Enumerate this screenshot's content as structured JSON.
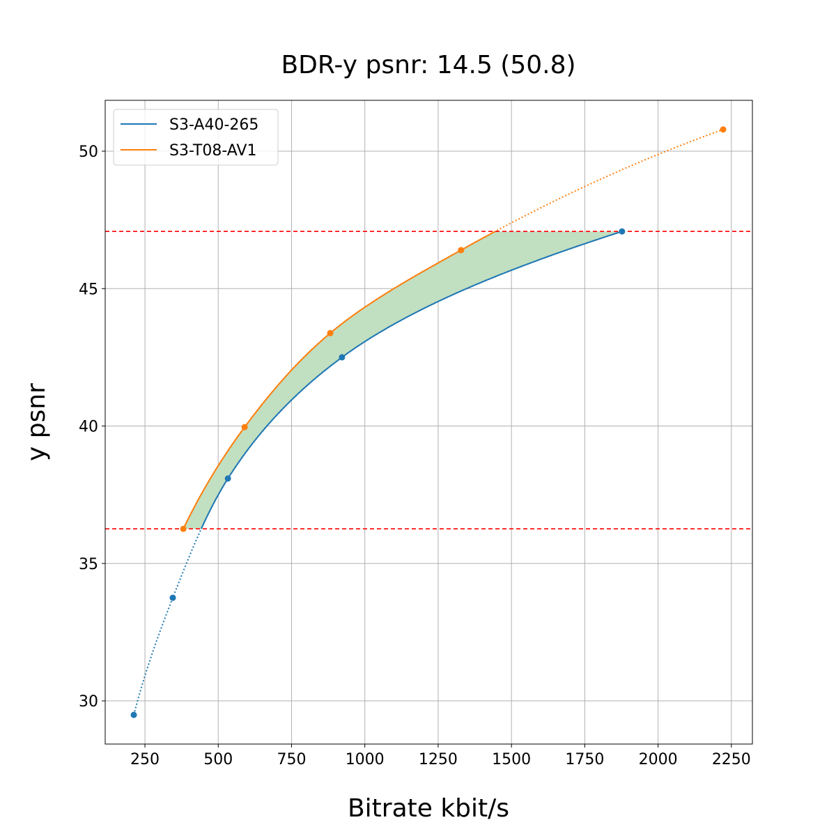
{
  "chart_data": {
    "type": "line",
    "title": "BDR-y psnr: 14.5 (50.8)",
    "xlabel": "Bitrate kbit/s",
    "ylabel": "y psnr",
    "xlim": [
      114.5,
      2321.7
    ],
    "ylim": [
      28.43,
      51.85
    ],
    "xticks": [
      250,
      500,
      750,
      1000,
      1250,
      1500,
      1750,
      2000,
      2250
    ],
    "yticks": [
      30,
      35,
      40,
      45,
      50
    ],
    "grid": true,
    "legend_position": "top-left",
    "series": [
      {
        "name": "S3-A40-265",
        "color": "#1f77b4",
        "x": [
          212,
          345,
          533,
          922,
          1877
        ],
        "y": [
          29.49,
          33.75,
          38.09,
          42.5,
          47.08
        ]
      },
      {
        "name": "S3-T08-AV1",
        "color": "#ff7f0e",
        "x": [
          381,
          590,
          882,
          1328,
          2222
        ],
        "y": [
          36.26,
          39.96,
          43.38,
          46.4,
          50.79
        ]
      }
    ],
    "reference_lines": {
      "y": [
        36.26,
        47.08
      ],
      "color": "#ff0000",
      "style": "dashed"
    },
    "fill_between": {
      "color": "#c1dfc1",
      "range": [
        36.26,
        47.08
      ]
    }
  }
}
